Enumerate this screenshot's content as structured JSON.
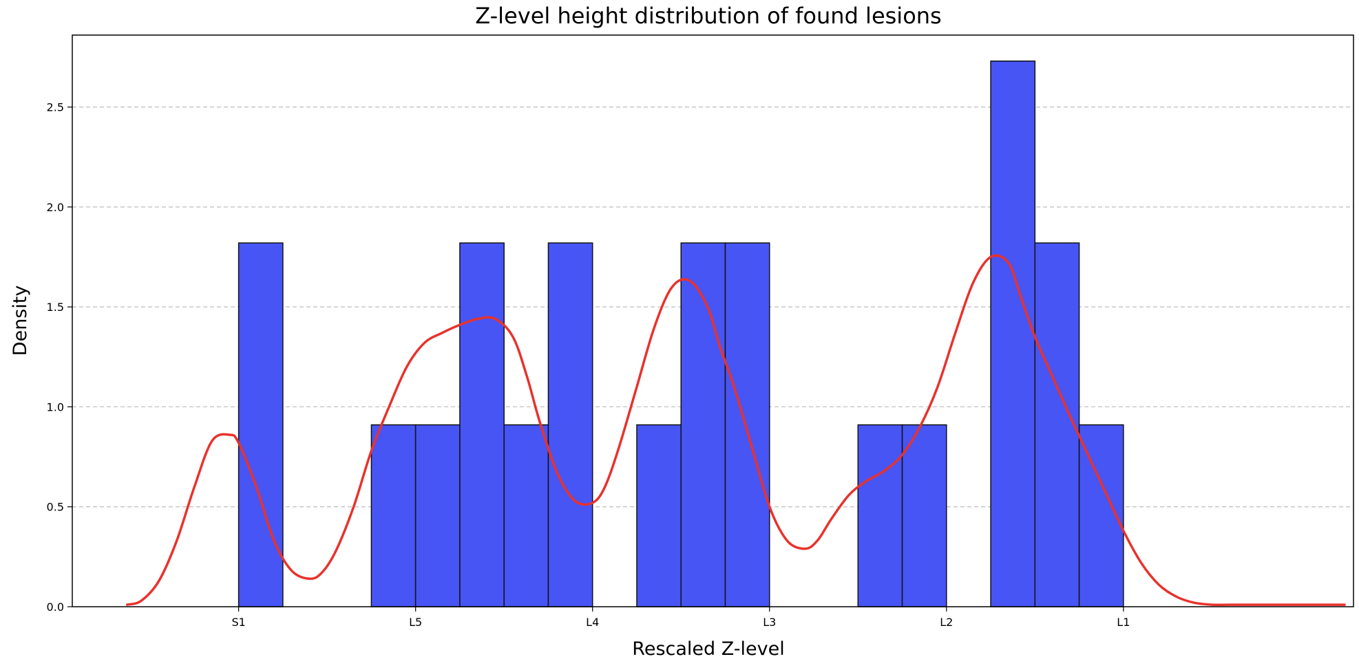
{
  "chart_data": {
    "type": "bar",
    "title": "Z-level height distribution of found lesions",
    "xlabel": "Rescaled Z-level",
    "ylabel": "Density",
    "x_ticks": [
      {
        "label": "S1",
        "x": 0.0
      },
      {
        "label": "L5",
        "x": 1.0
      },
      {
        "label": "L4",
        "x": 2.0
      },
      {
        "label": "L3",
        "x": 3.0
      },
      {
        "label": "L2",
        "x": 4.0
      },
      {
        "label": "L1",
        "x": 5.0
      }
    ],
    "xlim": [
      -0.94,
      6.3
    ],
    "ylim": [
      0,
      2.86
    ],
    "y_ticks": [
      0.0,
      0.5,
      1.0,
      1.5,
      2.0,
      2.5
    ],
    "y_tick_labels": [
      "0.0",
      "0.5",
      "1.0",
      "1.5",
      "2.0",
      "2.5"
    ],
    "grid": "y-dashed",
    "bin_width": 0.25,
    "bins": [
      {
        "x0": 0.0,
        "density": 1.82
      },
      {
        "x0": 0.75,
        "density": 0.91
      },
      {
        "x0": 1.0,
        "density": 0.91
      },
      {
        "x0": 1.25,
        "density": 1.82
      },
      {
        "x0": 1.5,
        "density": 0.91
      },
      {
        "x0": 1.75,
        "density": 1.82
      },
      {
        "x0": 2.25,
        "density": 0.91
      },
      {
        "x0": 2.5,
        "density": 1.82
      },
      {
        "x0": 2.75,
        "density": 1.82
      },
      {
        "x0": 3.5,
        "density": 0.91
      },
      {
        "x0": 3.75,
        "density": 0.91
      },
      {
        "x0": 4.25,
        "density": 2.73
      },
      {
        "x0": 4.5,
        "density": 1.82
      },
      {
        "x0": 4.75,
        "density": 0.91
      }
    ],
    "kde": {
      "x": [
        -0.63,
        -0.55,
        -0.45,
        -0.35,
        -0.25,
        -0.15,
        -0.05,
        0.0,
        0.1,
        0.2,
        0.3,
        0.4,
        0.47,
        0.55,
        0.65,
        0.75,
        0.85,
        0.95,
        1.05,
        1.15,
        1.25,
        1.35,
        1.45,
        1.55,
        1.63,
        1.7,
        1.8,
        1.9,
        2.0,
        2.07,
        2.15,
        2.25,
        2.35,
        2.45,
        2.55,
        2.65,
        2.72,
        2.8,
        2.9,
        3.0,
        3.1,
        3.2,
        3.27,
        3.35,
        3.45,
        3.55,
        3.65,
        3.75,
        3.85,
        3.95,
        4.05,
        4.15,
        4.25,
        4.35,
        4.42,
        4.5,
        4.6,
        4.7,
        4.8,
        4.9,
        5.0,
        5.1,
        5.2,
        5.3,
        5.4,
        5.5,
        5.6,
        5.7,
        5.8,
        5.95,
        6.05,
        6.1,
        6.15,
        6.25
      ],
      "y": [
        0.01,
        0.03,
        0.13,
        0.33,
        0.6,
        0.83,
        0.86,
        0.82,
        0.6,
        0.33,
        0.18,
        0.14,
        0.17,
        0.28,
        0.5,
        0.78,
        1.0,
        1.2,
        1.32,
        1.37,
        1.41,
        1.44,
        1.44,
        1.35,
        1.15,
        0.93,
        0.67,
        0.53,
        0.52,
        0.6,
        0.8,
        1.1,
        1.4,
        1.6,
        1.63,
        1.5,
        1.3,
        1.1,
        0.8,
        0.5,
        0.33,
        0.29,
        0.33,
        0.44,
        0.56,
        0.63,
        0.68,
        0.76,
        0.9,
        1.1,
        1.37,
        1.62,
        1.75,
        1.72,
        1.55,
        1.35,
        1.15,
        0.95,
        0.76,
        0.57,
        0.38,
        0.22,
        0.11,
        0.05,
        0.02,
        0.01,
        0.01,
        0.01,
        0.01,
        0.01,
        0.01,
        0.01,
        0.01,
        0.01
      ]
    },
    "colors": {
      "bar_fill": "#4755f5",
      "bar_edge": "#111111",
      "kde_line": "#e8322c",
      "grid": "#bdbdbd"
    }
  }
}
